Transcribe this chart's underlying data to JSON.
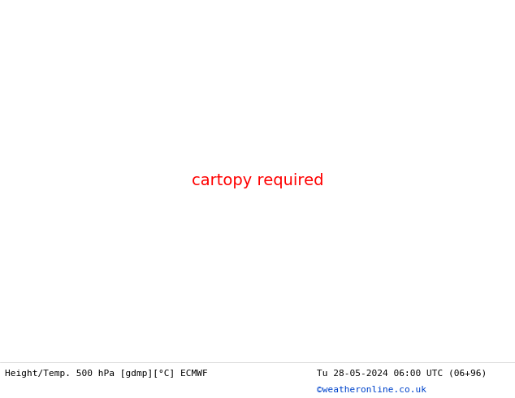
{
  "title_left": "Height/Temp. 500 hPa [gdmp][°C] ECMWF",
  "title_right": "Tu 28-05-2024 06:00 UTC (06+96)",
  "credit": "©weatheronline.co.uk",
  "map_bg": "#d2d2d2",
  "land_color": "#c8f0a0",
  "sea_color": "#d8d8d8",
  "border_color": "#a0a0a0",
  "contour_black": "#000000",
  "contour_orange": "#ff8800",
  "contour_red": "#dd0000",
  "contour_magenta": "#cc00bb",
  "contour_green": "#88cc00",
  "fig_width": 6.34,
  "fig_height": 4.9,
  "dpi": 100,
  "lon_min": 88,
  "lon_max": 175,
  "lat_min": -18,
  "lat_max": 48
}
